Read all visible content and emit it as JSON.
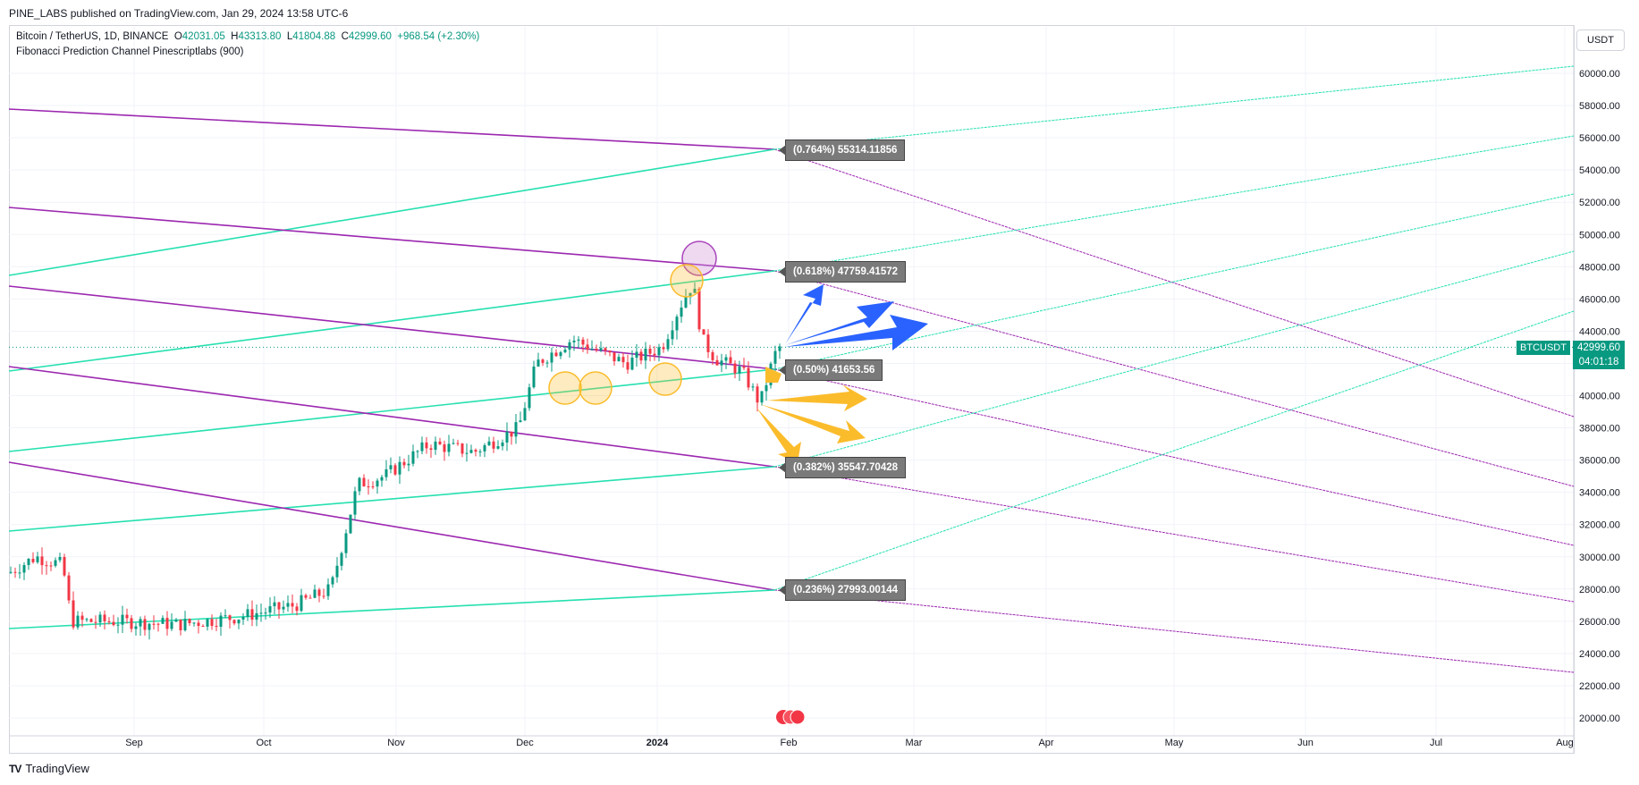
{
  "header": {
    "published": "PINE_LABS published on TradingView.com, Jan 29, 2024 13:58 UTC-6"
  },
  "legend": {
    "symbol": "Bitcoin / TetherUS, 1D, BINANCE",
    "o_label": "O",
    "o": "42031.05",
    "h_label": "H",
    "h": "43313.80",
    "l_label": "L",
    "l": "41804.88",
    "c_label": "C",
    "c": "42999.60",
    "change": "+968.54 (+2.30%)",
    "indicator": "Fibonacci Prediction Channel Pinescriptlabs (900)"
  },
  "currency_button": "USDT",
  "last_price": {
    "symbol": "BTCUSDT",
    "price": "42999.60",
    "countdown": "04:01:18"
  },
  "fib_labels": [
    {
      "text": "(0.764%) 55314.11856"
    },
    {
      "text": "(0.618%) 47759.41572"
    },
    {
      "text": "(0.50%) 41653.56"
    },
    {
      "text": "(0.382%) 35547.70428"
    },
    {
      "text": "(0.236%) 27993.00144"
    }
  ],
  "price_axis": [
    "60000.00",
    "58000.00",
    "56000.00",
    "54000.00",
    "52000.00",
    "50000.00",
    "48000.00",
    "46000.00",
    "44000.00",
    "42000.00",
    "40000.00",
    "38000.00",
    "36000.00",
    "34000.00",
    "32000.00",
    "30000.00",
    "28000.00",
    "26000.00",
    "24000.00",
    "22000.00",
    "20000.00"
  ],
  "time_axis": [
    "Sep",
    "Oct",
    "Nov",
    "Dec",
    "2024",
    "Feb",
    "Mar",
    "Apr",
    "May",
    "Jun",
    "Jul",
    "Aug"
  ],
  "footer": {
    "brand": "TradingView",
    "logo_mark": "TV"
  },
  "colors": {
    "up": "#089981",
    "down": "#f23645",
    "purple": "#9c27b0",
    "mint": "#26e0b0",
    "blue": "#2962ff",
    "orange": "#fbbc2c"
  }
}
